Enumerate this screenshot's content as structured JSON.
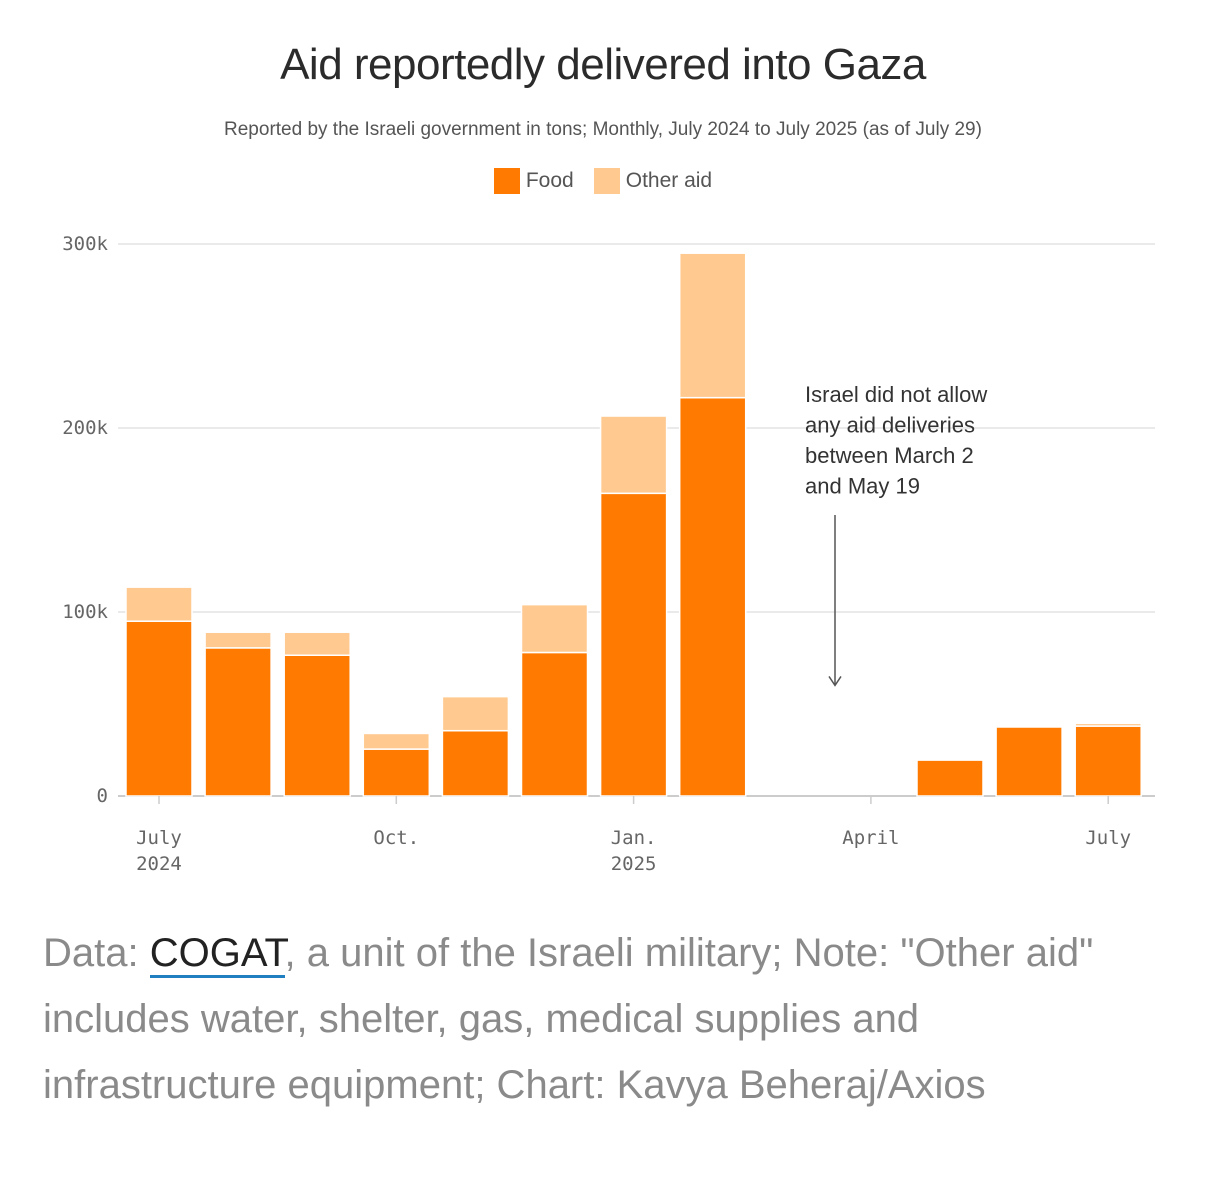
{
  "chart_data": {
    "type": "bar",
    "stacked": true,
    "title": "Aid reportedly delivered into Gaza",
    "subtitle": "Reported by the Israeli government in tons; Monthly, July 2024 to July 2025 (as of July 29)",
    "categories": [
      "Jul 2024",
      "Aug 2024",
      "Sep 2024",
      "Oct 2024",
      "Nov 2024",
      "Dec 2024",
      "Jan 2025",
      "Feb 2025",
      "Mar 2025",
      "Apr 2025",
      "May 2025",
      "Jun 2025",
      "Jul 2025"
    ],
    "series": [
      {
        "name": "Food",
        "color": "#ff7a00",
        "values": [
          95000,
          80500,
          76500,
          25500,
          35500,
          78000,
          164500,
          216500,
          0,
          0,
          19500,
          37500,
          38000
        ]
      },
      {
        "name": "Other aid",
        "color": "#ffc98f",
        "values": [
          18500,
          8500,
          12500,
          8500,
          18500,
          26000,
          42000,
          78500,
          0,
          0,
          0,
          0,
          1500
        ]
      }
    ],
    "ylim": [
      0,
      300000
    ],
    "yticks": [
      {
        "value": 0,
        "label": "0"
      },
      {
        "value": 100000,
        "label": "100k"
      },
      {
        "value": 200000,
        "label": "200k"
      },
      {
        "value": 300000,
        "label": "300k"
      }
    ],
    "xticks": [
      {
        "month_index": 0,
        "label": "July",
        "label2": "2024"
      },
      {
        "month_index": 3,
        "label": "Oct.",
        "label2": ""
      },
      {
        "month_index": 6,
        "label": "Jan.",
        "label2": "2025"
      },
      {
        "month_index": 9,
        "label": "April",
        "label2": ""
      },
      {
        "month_index": 12,
        "label": "July",
        "label2": ""
      }
    ],
    "annotation": {
      "lines": [
        "Israel did not allow",
        "any aid deliveries",
        "between March 2",
        "and May 19"
      ],
      "arrow_target_value": 40000
    },
    "grid": true
  },
  "legend": {
    "food_label": "Food",
    "other_label": "Other aid",
    "food_color": "#ff7a00",
    "other_color": "#ffc98f"
  },
  "footer": {
    "prefix": "Data: ",
    "link_text": "COGAT",
    "suffix": ", a unit of the Israeli military; Note: \"Other aid\" includes water, shelter, gas, medical supplies and infrastructure equipment; Chart: Kavya Beheraj/Axios"
  }
}
